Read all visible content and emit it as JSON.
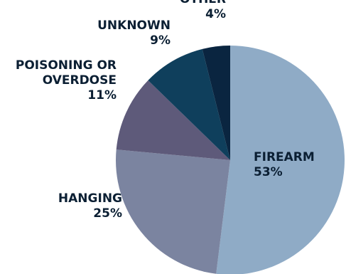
{
  "chart_data": {
    "type": "pie",
    "slices": [
      {
        "label": "FIREARM",
        "value": 53,
        "value_label": "53%",
        "color": "#8fabc6"
      },
      {
        "label": "HANGING",
        "value": 25,
        "value_label": "25%",
        "color": "#7b84a0"
      },
      {
        "label": "POISONING OR OVERDOSE",
        "label_lines": [
          "POISONING OR",
          "OVERDOSE"
        ],
        "value": 11,
        "value_label": "11%",
        "color": "#5e5a7a"
      },
      {
        "label": "UNKNOWN",
        "value": 9,
        "value_label": "9%",
        "color": "#0f3f5c"
      },
      {
        "label": "OTHER",
        "value": 4,
        "value_label": "4%",
        "color": "#0a2540"
      }
    ],
    "start_angle": "12 o'clock",
    "direction": "clockwise",
    "label_color": "#0b1f33",
    "inside_label_color": "#0b1f33"
  }
}
